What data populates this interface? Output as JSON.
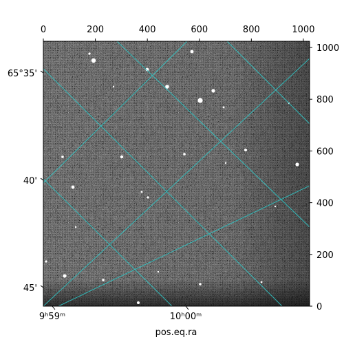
{
  "colors": {
    "grid": "#2ec4c4",
    "frame": "#000000",
    "sky_base": "#7a7a7a",
    "star": "#ffffff"
  },
  "chart_data": {
    "type": "heatmap",
    "description_kind": "astronomical grayscale image with WCS celestial grid overlay",
    "grid": true,
    "xlabel": "pos.eq.ra",
    "ylabel": "",
    "xlim": [
      0,
      1024
    ],
    "ylim": [
      0,
      1024
    ],
    "top_ticks": [
      {
        "label": "0",
        "value": 0
      },
      {
        "label": "200",
        "value": 200
      },
      {
        "label": "400",
        "value": 400
      },
      {
        "label": "600",
        "value": 600
      },
      {
        "label": "800",
        "value": 800
      },
      {
        "label": "1000",
        "value": 1000
      }
    ],
    "right_ticks": [
      {
        "label": "0",
        "value": 0
      },
      {
        "label": "200",
        "value": 200
      },
      {
        "label": "400",
        "value": 400
      },
      {
        "label": "600",
        "value": 600
      },
      {
        "label": "800",
        "value": 800
      },
      {
        "label": "1000",
        "value": 1000
      }
    ],
    "bottom_ticks": [
      {
        "label": "9ʰ59ᵐ",
        "value": "9h59m"
      },
      {
        "label": "10ʰ00ᵐ",
        "value": "10h00m"
      }
    ],
    "left_ticks": [
      {
        "label": "65°35'",
        "value": "65°35'"
      },
      {
        "label": "40'",
        "value": "65°40'"
      },
      {
        "label": "45'",
        "value": "65°45'"
      }
    ]
  }
}
